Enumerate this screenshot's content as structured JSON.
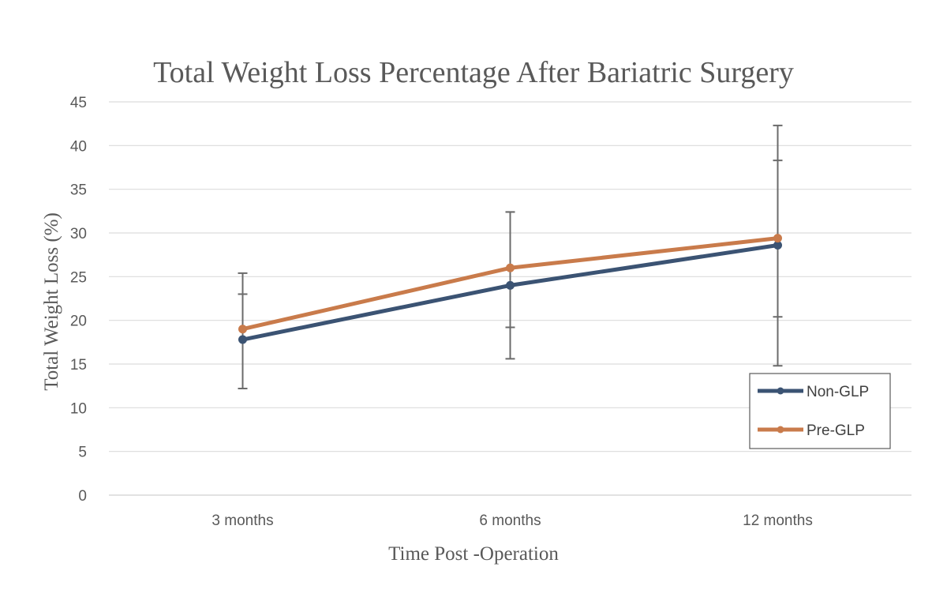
{
  "chart_data": {
    "type": "line",
    "title": "Total Weight Loss Percentage After Bariatric Surgery",
    "xlabel": "Time Post -Operation",
    "ylabel": "Total Weight Loss (%)",
    "categories": [
      "3 months",
      "6 months",
      "12 months"
    ],
    "ylim": [
      0,
      45
    ],
    "yticks": [
      0,
      5,
      10,
      15,
      20,
      25,
      30,
      35,
      40,
      45
    ],
    "grid": true,
    "legend_position": "bottom-right",
    "series": [
      {
        "name": "Non-GLP",
        "color": "#3b5373",
        "values": [
          17.8,
          24.0,
          28.6
        ],
        "error": [
          [
            12.2,
            23.0
          ],
          [
            15.6,
            32.4
          ],
          [
            14.8,
            42.3
          ]
        ]
      },
      {
        "name": "Pre-GLP",
        "color": "#c97b4b",
        "values": [
          19.0,
          26.0,
          29.4
        ],
        "error": [
          [
            12.2,
            25.4
          ],
          [
            19.2,
            32.4
          ],
          [
            20.4,
            38.3
          ]
        ]
      }
    ]
  }
}
